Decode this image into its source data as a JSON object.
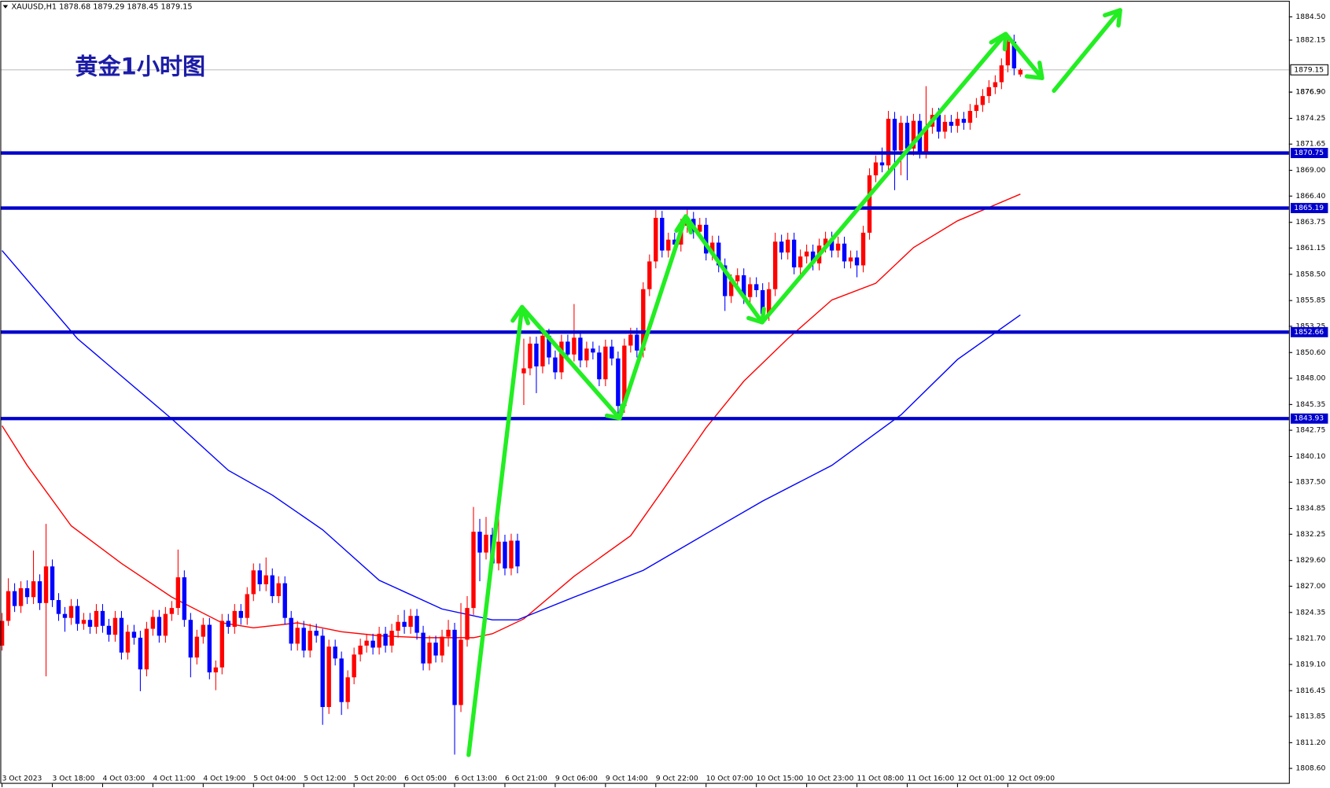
{
  "chart_data": {
    "type": "candlestick",
    "header": "XAUUSD,H1  1878.68 1879.29 1878.45 1879.15",
    "title": "黄金1小时图",
    "up_color": "#ff0000",
    "down_color": "#0000ff",
    "ylim": [
      1807.05,
      1886.03
    ],
    "yticks": [
      {
        "value": 1884.5,
        "label": "1884.50"
      },
      1882.15,
      1876.9,
      {
        "value": 1876.9,
        "label": "1876.90"
      },
      1874.25,
      1871.65,
      {
        "value": 1869.0,
        "label": "1869.00"
      },
      {
        "value": 1866.4,
        "label": "1866.40"
      },
      1863.75,
      1861.15,
      {
        "value": 1858.5,
        "label": "1858.50"
      },
      1855.85,
      1853.25,
      {
        "value": 1850.6,
        "label": "1850.60"
      },
      {
        "value": 1848.0,
        "label": "1848.00"
      },
      1845.35,
      1842.75,
      {
        "value": 1840.1,
        "label": "1840.10"
      },
      {
        "value": 1837.5,
        "label": "1837.50"
      },
      1834.85,
      1832.25,
      {
        "value": 1829.6,
        "label": "1829.60"
      },
      {
        "value": 1827.0,
        "label": "1827.00"
      },
      1824.35,
      {
        "value": 1821.7,
        "label": "1821.70"
      },
      {
        "value": 1819.1,
        "label": "1819.10"
      },
      1816.45,
      1813.85,
      {
        "value": 1811.2,
        "label": "1811.20"
      },
      {
        "value": 1808.6,
        "label": "1808.60"
      }
    ],
    "xticks": [
      {
        "value": 0,
        "label": "3 Oct 2023"
      },
      {
        "value": 8,
        "label": "3 Oct 18:00"
      },
      {
        "value": 16,
        "label": "4 Oct 03:00"
      },
      {
        "value": 24,
        "label": "4 Oct 11:00"
      },
      {
        "value": 32,
        "label": "4 Oct 19:00"
      },
      {
        "value": 40,
        "label": "5 Oct 04:00"
      },
      {
        "value": 48,
        "label": "5 Oct 12:00"
      },
      {
        "value": 56,
        "label": "5 Oct 20:00"
      },
      {
        "value": 64,
        "label": "6 Oct 05:00"
      },
      {
        "value": 72,
        "label": "6 Oct 13:00"
      },
      {
        "value": 80,
        "label": "6 Oct 21:00"
      },
      {
        "value": 88,
        "label": "9 Oct 06:00"
      },
      {
        "value": 96,
        "label": "9 Oct 14:00"
      },
      {
        "value": 104,
        "label": "9 Oct 22:00"
      },
      {
        "value": 112,
        "label": "10 Oct 07:00"
      },
      {
        "value": 120,
        "label": "10 Oct 15:00"
      },
      {
        "value": 128,
        "label": "10 Oct 23:00"
      },
      {
        "value": 136,
        "label": "11 Oct 08:00"
      },
      {
        "value": 144,
        "label": "11 Oct 16:00"
      },
      {
        "value": 152,
        "label": "12 Oct 01:00"
      },
      {
        "value": 160,
        "label": "12 Oct 09:00"
      }
    ],
    "last_price": 1879.15,
    "levels": [
      {
        "value": 1870.75,
        "color": "#0000cc"
      },
      {
        "value": 1865.19,
        "color": "#0000cc"
      },
      {
        "value": 1852.66,
        "color": "#0000cc"
      },
      {
        "value": 1843.93,
        "color": "#0000cc"
      }
    ],
    "lines": [
      {
        "color": "#ff0000",
        "x": [
          0,
          4,
          11,
          19,
          27,
          35,
          40,
          47,
          54,
          60,
          67,
          75,
          78,
          83,
          91,
          100,
          105,
          112,
          118,
          125,
          132,
          139,
          145,
          152,
          162
        ],
        "values": [
          1843.2,
          1839.2,
          1833.1,
          1829.3,
          1825.9,
          1823.3,
          1822.8,
          1823.3,
          1822.4,
          1822.0,
          1821.8,
          1821.8,
          1822.2,
          1823.7,
          1828.0,
          1832.1,
          1836.6,
          1843.0,
          1847.7,
          1852.0,
          1855.9,
          1857.6,
          1861.2,
          1863.9,
          1866.6
        ]
      },
      {
        "color": "#0000ff",
        "x": [
          0,
          12,
          27,
          36,
          43,
          51,
          60,
          70,
          78,
          82,
          91,
          102,
          112,
          121,
          132,
          143,
          152,
          162
        ],
        "values": [
          1860.9,
          1852.0,
          1843.9,
          1838.7,
          1836.2,
          1832.7,
          1827.6,
          1824.7,
          1823.6,
          1823.6,
          1825.9,
          1828.6,
          1832.3,
          1835.6,
          1839.2,
          1844.3,
          1849.9,
          1854.4
        ]
      }
    ],
    "ohlc": [
      [
        1821.0,
        1824.3,
        1820.5,
        1823.5
      ],
      [
        1823.5,
        1827.8,
        1823.0,
        1826.5
      ],
      [
        1826.5,
        1827.3,
        1824.4,
        1825.0
      ],
      [
        1825.0,
        1827.5,
        1824.3,
        1826.8
      ],
      [
        1826.8,
        1827.6,
        1825.2,
        1825.9
      ],
      [
        1825.9,
        1830.6,
        1825.2,
        1827.5
      ],
      [
        1827.5,
        1828.2,
        1824.6,
        1825.3
      ],
      [
        1825.3,
        1833.3,
        1817.9,
        1829.0
      ],
      [
        1829.0,
        1829.7,
        1824.9,
        1825.6
      ],
      [
        1825.6,
        1826.3,
        1823.5,
        1824.2
      ],
      [
        1824.2,
        1824.9,
        1822.4,
        1823.8
      ],
      [
        1823.8,
        1825.7,
        1823.1,
        1825.0
      ],
      [
        1825.0,
        1825.7,
        1822.5,
        1823.2
      ],
      [
        1823.2,
        1824.3,
        1822.6,
        1823.6
      ],
      [
        1823.6,
        1824.3,
        1822.2,
        1822.9
      ],
      [
        1822.9,
        1825.2,
        1822.2,
        1824.5
      ],
      [
        1824.5,
        1825.2,
        1822.3,
        1823.0
      ],
      [
        1823.0,
        1823.7,
        1821.4,
        1822.1
      ],
      [
        1822.1,
        1824.5,
        1821.4,
        1823.8
      ],
      [
        1823.8,
        1824.5,
        1819.6,
        1820.3
      ],
      [
        1820.3,
        1823.1,
        1819.6,
        1822.4
      ],
      [
        1822.4,
        1823.1,
        1821.1,
        1821.8
      ],
      [
        1821.8,
        1822.5,
        1816.4,
        1818.6
      ],
      [
        1818.6,
        1823.4,
        1817.9,
        1822.7
      ],
      [
        1822.7,
        1824.6,
        1822.0,
        1823.9
      ],
      [
        1823.9,
        1824.6,
        1821.3,
        1822.0
      ],
      [
        1822.0,
        1824.9,
        1821.3,
        1824.2
      ],
      [
        1824.2,
        1825.5,
        1823.5,
        1824.8
      ],
      [
        1824.8,
        1830.7,
        1824.1,
        1827.9
      ],
      [
        1827.9,
        1828.6,
        1822.9,
        1823.6
      ],
      [
        1823.6,
        1824.3,
        1817.8,
        1819.8
      ],
      [
        1819.8,
        1822.6,
        1819.1,
        1821.9
      ],
      [
        1821.9,
        1823.8,
        1821.2,
        1823.1
      ],
      [
        1823.1,
        1823.8,
        1817.6,
        1818.3
      ],
      [
        1818.3,
        1819.5,
        1816.5,
        1818.8
      ],
      [
        1818.8,
        1824.2,
        1818.1,
        1823.5
      ],
      [
        1823.5,
        1824.2,
        1822.2,
        1822.9
      ],
      [
        1822.9,
        1825.2,
        1822.2,
        1824.5
      ],
      [
        1824.5,
        1825.2,
        1823.1,
        1823.8
      ],
      [
        1823.8,
        1826.9,
        1823.1,
        1826.2
      ],
      [
        1826.2,
        1829.3,
        1825.5,
        1828.6
      ],
      [
        1828.6,
        1829.3,
        1826.5,
        1827.2
      ],
      [
        1827.2,
        1829.9,
        1826.5,
        1828.1
      ],
      [
        1828.1,
        1828.8,
        1825.3,
        1826.0
      ],
      [
        1826.0,
        1828.0,
        1825.3,
        1827.3
      ],
      [
        1827.3,
        1828.0,
        1823.1,
        1823.8
      ],
      [
        1823.8,
        1824.5,
        1820.5,
        1821.2
      ],
      [
        1821.2,
        1823.5,
        1820.5,
        1822.8
      ],
      [
        1822.8,
        1823.5,
        1819.8,
        1820.5
      ],
      [
        1820.5,
        1823.2,
        1819.8,
        1822.5
      ],
      [
        1822.5,
        1823.2,
        1821.3,
        1822.0
      ],
      [
        1822.0,
        1822.7,
        1813.0,
        1814.8
      ],
      [
        1814.8,
        1821.6,
        1814.1,
        1820.9
      ],
      [
        1820.9,
        1821.6,
        1819.0,
        1819.7
      ],
      [
        1819.7,
        1820.4,
        1814.0,
        1815.3
      ],
      [
        1815.3,
        1818.5,
        1814.6,
        1817.8
      ],
      [
        1817.8,
        1820.8,
        1817.1,
        1820.1
      ],
      [
        1820.1,
        1821.7,
        1819.4,
        1821.0
      ],
      [
        1821.0,
        1822.2,
        1820.3,
        1821.5
      ],
      [
        1821.5,
        1822.2,
        1820.1,
        1820.8
      ],
      [
        1820.8,
        1822.9,
        1820.1,
        1822.2
      ],
      [
        1822.2,
        1822.9,
        1820.3,
        1821.0
      ],
      [
        1821.0,
        1823.2,
        1820.3,
        1822.5
      ],
      [
        1822.5,
        1824.1,
        1821.8,
        1823.4
      ],
      [
        1823.4,
        1824.6,
        1822.2,
        1822.9
      ],
      [
        1822.9,
        1824.7,
        1822.2,
        1824.0
      ],
      [
        1824.0,
        1824.7,
        1821.6,
        1822.3
      ],
      [
        1822.3,
        1823.0,
        1818.5,
        1819.2
      ],
      [
        1819.2,
        1822.0,
        1818.5,
        1821.3
      ],
      [
        1821.3,
        1822.0,
        1819.3,
        1820.0
      ],
      [
        1820.0,
        1822.6,
        1819.3,
        1821.9
      ],
      [
        1821.9,
        1823.6,
        1820.9,
        1822.6
      ],
      [
        1822.6,
        1823.3,
        1810.0,
        1815.0
      ],
      [
        1815.0,
        1825.3,
        1814.3,
        1821.6
      ],
      [
        1821.6,
        1826.0,
        1820.9,
        1824.8
      ],
      [
        1824.8,
        1835.0,
        1824.1,
        1832.5
      ],
      [
        1832.5,
        1833.8,
        1827.5,
        1830.4
      ],
      [
        1830.4,
        1834.0,
        1829.7,
        1832.2
      ],
      [
        1832.2,
        1832.9,
        1828.6,
        1829.3
      ],
      [
        1829.3,
        1834.2,
        1828.6,
        1831.5
      ],
      [
        1831.5,
        1832.2,
        1828.1,
        1828.8
      ],
      [
        1828.8,
        1832.3,
        1828.1,
        1831.6
      ],
      [
        1831.6,
        1832.3,
        1828.3,
        1829.0
      ],
      [
        1848.5,
        1852.0,
        1845.3,
        1849.0
      ],
      [
        1849.0,
        1852.2,
        1848.3,
        1851.5
      ],
      [
        1851.5,
        1852.2,
        1846.5,
        1849.2
      ],
      [
        1849.2,
        1853.0,
        1848.5,
        1852.3
      ],
      [
        1852.3,
        1853.0,
        1849.4,
        1850.1
      ],
      [
        1850.1,
        1850.8,
        1847.9,
        1848.6
      ],
      [
        1848.6,
        1852.4,
        1847.9,
        1851.7
      ],
      [
        1851.7,
        1852.4,
        1849.7,
        1850.4
      ],
      [
        1850.4,
        1855.5,
        1849.7,
        1852.1
      ],
      [
        1852.1,
        1852.8,
        1849.1,
        1849.8
      ],
      [
        1849.8,
        1851.7,
        1849.1,
        1851.0
      ],
      [
        1851.0,
        1851.7,
        1849.9,
        1850.6
      ],
      [
        1850.6,
        1851.3,
        1847.2,
        1847.9
      ],
      [
        1847.9,
        1851.9,
        1847.2,
        1851.2
      ],
      [
        1851.2,
        1851.9,
        1849.3,
        1850.0
      ],
      [
        1850.0,
        1850.7,
        1844.3,
        1845.2
      ],
      [
        1845.2,
        1852.0,
        1844.5,
        1851.3
      ],
      [
        1851.3,
        1853.1,
        1850.6,
        1852.4
      ],
      [
        1852.4,
        1853.1,
        1850.1,
        1850.8
      ],
      [
        1850.8,
        1857.7,
        1850.1,
        1857.0
      ],
      [
        1857.0,
        1860.5,
        1856.3,
        1859.8
      ],
      [
        1859.8,
        1865.0,
        1859.1,
        1864.2
      ],
      [
        1864.2,
        1864.9,
        1860.2,
        1860.9
      ],
      [
        1860.9,
        1862.7,
        1860.2,
        1862.0
      ],
      [
        1862.0,
        1862.7,
        1860.8,
        1861.5
      ],
      [
        1861.5,
        1864.1,
        1860.8,
        1863.4
      ],
      [
        1863.4,
        1865.2,
        1862.7,
        1864.1
      ],
      [
        1864.1,
        1864.8,
        1862.1,
        1862.8
      ],
      [
        1862.8,
        1864.2,
        1862.1,
        1863.5
      ],
      [
        1863.5,
        1864.2,
        1859.9,
        1860.6
      ],
      [
        1860.6,
        1862.4,
        1859.9,
        1861.7
      ],
      [
        1861.7,
        1862.4,
        1858.7,
        1859.4
      ],
      [
        1859.4,
        1860.1,
        1854.8,
        1856.3
      ],
      [
        1856.3,
        1858.5,
        1855.6,
        1857.8
      ],
      [
        1857.8,
        1859.1,
        1857.1,
        1858.4
      ],
      [
        1858.4,
        1859.1,
        1855.5,
        1856.2
      ],
      [
        1856.2,
        1858.2,
        1855.5,
        1857.5
      ],
      [
        1857.5,
        1858.2,
        1856.2,
        1856.9
      ],
      [
        1856.9,
        1857.6,
        1853.5,
        1854.5
      ],
      [
        1854.5,
        1857.7,
        1853.8,
        1857.0
      ],
      [
        1857.0,
        1862.7,
        1856.3,
        1861.8
      ],
      [
        1861.8,
        1862.5,
        1860.0,
        1860.7
      ],
      [
        1860.7,
        1862.7,
        1860.0,
        1862.0
      ],
      [
        1862.0,
        1862.7,
        1858.5,
        1859.2
      ],
      [
        1859.2,
        1861.0,
        1858.5,
        1860.3
      ],
      [
        1860.3,
        1861.5,
        1859.6,
        1860.8
      ],
      [
        1860.8,
        1861.5,
        1858.9,
        1859.6
      ],
      [
        1859.6,
        1862.1,
        1858.9,
        1861.4
      ],
      [
        1861.4,
        1862.8,
        1860.7,
        1862.1
      ],
      [
        1862.1,
        1862.8,
        1860.2,
        1860.9
      ],
      [
        1860.9,
        1862.3,
        1860.2,
        1861.6
      ],
      [
        1861.6,
        1862.3,
        1859.1,
        1859.8
      ],
      [
        1859.8,
        1860.9,
        1859.1,
        1860.2
      ],
      [
        1860.2,
        1860.9,
        1858.2,
        1859.4
      ],
      [
        1859.4,
        1863.4,
        1858.7,
        1862.7
      ],
      [
        1862.7,
        1869.2,
        1862.0,
        1868.5
      ],
      [
        1868.5,
        1870.5,
        1867.8,
        1869.8
      ],
      [
        1869.8,
        1871.3,
        1868.8,
        1869.5
      ],
      [
        1869.5,
        1875.0,
        1868.8,
        1874.2
      ],
      [
        1874.2,
        1874.9,
        1867.0,
        1871.0
      ],
      [
        1871.0,
        1874.5,
        1868.5,
        1873.8
      ],
      [
        1873.8,
        1874.5,
        1868.0,
        1871.2
      ],
      [
        1871.2,
        1874.7,
        1870.5,
        1874.0
      ],
      [
        1874.0,
        1874.7,
        1870.2,
        1870.9
      ],
      [
        1870.9,
        1877.5,
        1870.2,
        1873.4
      ],
      [
        1873.4,
        1875.3,
        1872.7,
        1874.6
      ],
      [
        1874.6,
        1875.3,
        1872.2,
        1872.9
      ],
      [
        1872.9,
        1874.6,
        1872.2,
        1873.9
      ],
      [
        1873.9,
        1874.6,
        1872.8,
        1873.5
      ],
      [
        1873.5,
        1874.9,
        1872.8,
        1874.2
      ],
      [
        1874.2,
        1874.9,
        1873.1,
        1873.8
      ],
      [
        1873.8,
        1875.7,
        1873.1,
        1875.0
      ],
      [
        1875.0,
        1876.3,
        1874.3,
        1875.6
      ],
      [
        1875.6,
        1877.2,
        1874.9,
        1876.5
      ],
      [
        1876.5,
        1878.1,
        1875.8,
        1877.4
      ],
      [
        1877.4,
        1878.6,
        1876.7,
        1877.9
      ],
      [
        1877.9,
        1880.3,
        1877.2,
        1879.6
      ],
      [
        1879.6,
        1882.8,
        1878.9,
        1882.0
      ],
      [
        1882.0,
        1882.7,
        1878.6,
        1879.3
      ],
      [
        1878.68,
        1879.29,
        1878.45,
        1879.15
      ]
    ]
  }
}
